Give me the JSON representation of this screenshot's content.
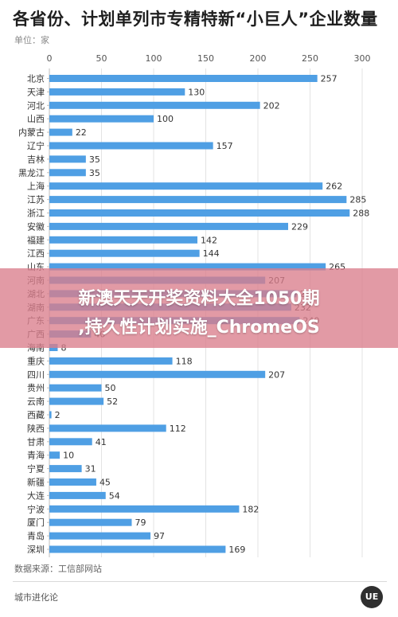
{
  "header": {
    "title": "各省份、计划单列市专精特新“小巨人”企业数量",
    "unit": "单位：家"
  },
  "footer": {
    "source": "数据来源：工信部网站",
    "brand": "城市进化论",
    "logo_text": "UE"
  },
  "overlay": {
    "line1": "新澳天天开奖资料大全1050期",
    "line2": ",持久性计划实施_ChromeOS"
  },
  "colors": {
    "bar": "#4f9fe4",
    "grid": "#e3e3e3",
    "overlay": "#da7d8c"
  },
  "chart_data": {
    "type": "bar",
    "orientation": "horizontal",
    "title": "各省份、计划单列市专精特新“小巨人”企业数量",
    "unit": "单位：家",
    "xlim": [
      0,
      300
    ],
    "ticks": [
      0,
      50,
      100,
      150,
      200,
      250,
      300
    ],
    "grid": true,
    "categories": [
      "北京",
      "天津",
      "河北",
      "山西",
      "内蒙古",
      "辽宁",
      "吉林",
      "黑龙江",
      "上海",
      "江苏",
      "浙江",
      "安徽",
      "福建",
      "江西",
      "山东",
      "河南",
      "湖北",
      "湖南",
      "广东",
      "广西",
      "海南",
      "重庆",
      "四川",
      "贵州",
      "云南",
      "西藏",
      "陕西",
      "甘肃",
      "青海",
      "宁夏",
      "新疆",
      "大连",
      "宁波",
      "厦门",
      "青岛",
      "深圳"
    ],
    "values": [
      257,
      130,
      202,
      100,
      22,
      157,
      35,
      35,
      262,
      285,
      288,
      229,
      142,
      144,
      265,
      207,
      237,
      232,
      240,
      40,
      8,
      118,
      207,
      50,
      52,
      2,
      112,
      41,
      10,
      31,
      45,
      54,
      182,
      79,
      97,
      169
    ]
  }
}
